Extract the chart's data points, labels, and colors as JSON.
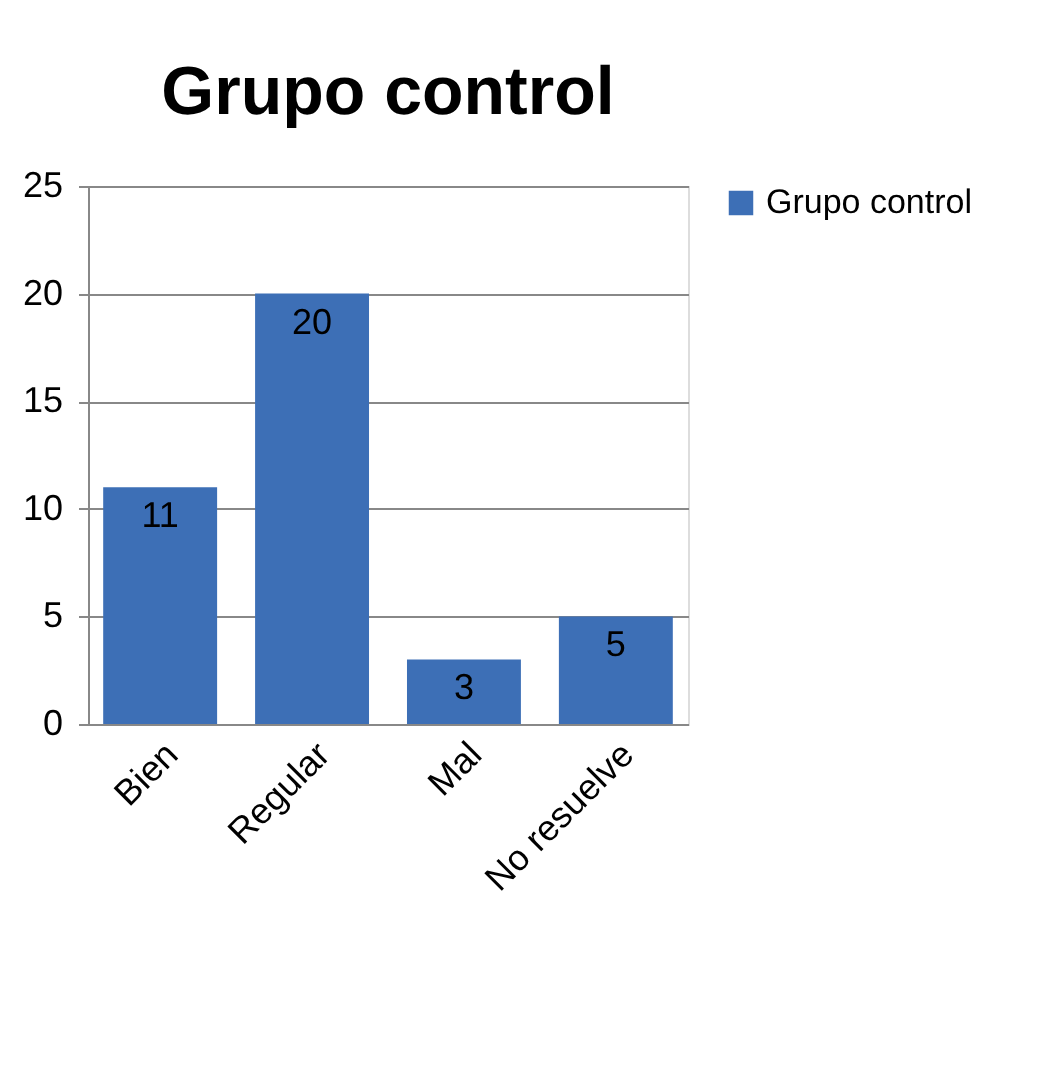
{
  "chart_data": {
    "type": "bar",
    "title": "Grupo control",
    "categories": [
      "Bien",
      "Regular",
      "Mal",
      "No resuelve"
    ],
    "series": [
      {
        "name": "Grupo control",
        "color": "#3d6fb6",
        "values": [
          11,
          20,
          3,
          5
        ]
      }
    ],
    "ylim": [
      0,
      25
    ],
    "yticks": [
      0,
      5,
      10,
      15,
      20,
      25
    ],
    "grid": "y",
    "legend": "right",
    "data_labels": true
  }
}
